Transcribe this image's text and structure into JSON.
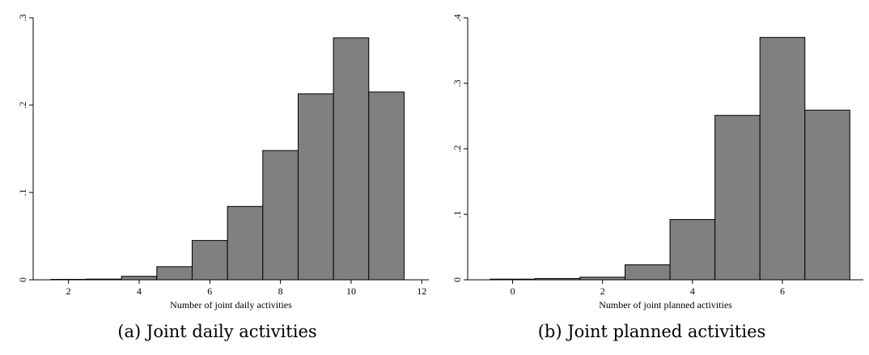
{
  "chart_data": [
    {
      "type": "bar",
      "xlabel": "Number of joint daily activities",
      "caption": "(a) Joint daily activities",
      "xlim": [
        1,
        12.2
      ],
      "ylim": [
        0,
        0.3
      ],
      "bin_width": 1,
      "x": [
        2,
        3,
        4,
        5,
        6,
        7,
        8,
        9,
        10,
        11
      ],
      "values": [
        0.0005,
        0.0008,
        0.004,
        0.015,
        0.045,
        0.084,
        0.148,
        0.213,
        0.277,
        0.215
      ],
      "xticks": [
        2,
        4,
        6,
        8,
        10,
        12
      ],
      "xtick_labels": [
        "2",
        "4",
        "6",
        "8",
        "10",
        "12"
      ],
      "yticks": [
        0,
        0.1,
        0.2,
        0.3
      ],
      "ytick_labels": [
        "0",
        ".1",
        ".2",
        ".3"
      ]
    },
    {
      "type": "bar",
      "xlabel": "Number of joint planned activities",
      "caption": "(b) Joint planned activities",
      "xlim": [
        -1,
        7.8
      ],
      "ylim": [
        0,
        0.4
      ],
      "bin_width": 1,
      "x": [
        0,
        1,
        2,
        3,
        4,
        5,
        6,
        7
      ],
      "values": [
        0.001,
        0.002,
        0.004,
        0.023,
        0.092,
        0.251,
        0.37,
        0.259
      ],
      "xticks": [
        0,
        2,
        4,
        6
      ],
      "xtick_labels": [
        "0",
        "2",
        "4",
        "6"
      ],
      "yticks": [
        0,
        0.1,
        0.2,
        0.3,
        0.4
      ],
      "ytick_labels": [
        "0",
        ".1",
        ".2",
        ".3",
        ".4"
      ]
    }
  ]
}
